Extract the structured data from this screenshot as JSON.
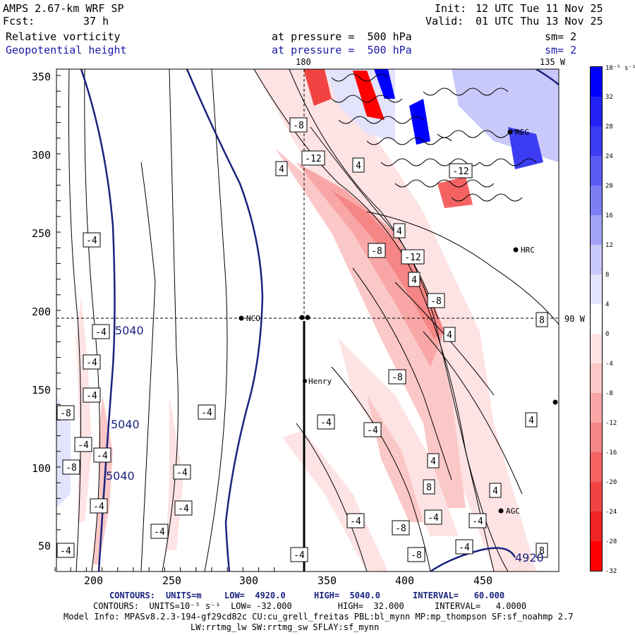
{
  "header": {
    "model": "AMPS 2.67-km WRF SP",
    "fcst_label": "Fcst:",
    "fcst_value": "37 h",
    "init_label": "Init:",
    "init_value": "12 UTC Tue 11 Nov 25",
    "valid_label": "Valid:",
    "valid_value": "01 UTC Thu 13 Nov 25"
  },
  "fields": [
    {
      "name": "Relative vorticity",
      "level": "at pressure =  500 hPa",
      "smooth": "sm= 2"
    },
    {
      "name": "Geopotential height",
      "level": "at pressure =  500 hPa",
      "smooth": "sm= 2"
    }
  ],
  "map": {
    "top_longitudes": [
      "180",
      "135 W"
    ],
    "right_longitude": "90 W",
    "x_ticks": [
      "200",
      "250",
      "300",
      "350",
      "400",
      "450"
    ],
    "y_ticks": [
      "50",
      "100",
      "150",
      "200",
      "250",
      "300",
      "350"
    ],
    "stations": [
      "NCO",
      "Henry",
      "HRC",
      "RSG",
      "AGC"
    ],
    "height_labels": [
      "5040",
      "5040",
      "5040",
      "4920"
    ],
    "vorticity_labels": [
      "-4",
      "-4",
      "-4",
      "-4",
      "-4",
      "-4",
      "-4",
      "-4",
      "-4",
      "-4",
      "-4",
      "-4",
      "-4",
      "-4",
      "-4",
      "-4",
      "-4",
      "-4",
      "-4",
      "-8",
      "-8",
      "-8",
      "-8",
      "-8",
      "-8",
      "-8",
      "-8",
      "-12",
      "-12",
      "-12",
      "4",
      "4",
      "4",
      "4",
      "4",
      "4",
      "4",
      "4",
      "8",
      "8",
      "8"
    ]
  },
  "colorbar": {
    "unit": "10⁻⁵ s⁻¹",
    "levels": [
      "32",
      "28",
      "24",
      "20",
      "16",
      "12",
      "8",
      "4",
      "0",
      "-4",
      "-8",
      "-12",
      "-16",
      "-20",
      "-24",
      "-28",
      "-32"
    ],
    "colors": [
      "#0000ff",
      "#2323f7",
      "#3c3cf3",
      "#5a5af2",
      "#7d7df4",
      "#a3a3f7",
      "#c8c8fa",
      "#e3e3fc",
      "#ffffff",
      "#fde3e3",
      "#fbc8c8",
      "#f8a6a6",
      "#f68585",
      "#f46262",
      "#f24343",
      "#f12424",
      "#ff0000"
    ]
  },
  "footer": {
    "line1_label": "CONTOURS:",
    "line1_units": "UNITS=m",
    "line1_low": "LOW=  4920.0",
    "line1_high": "HIGH=  5040.0",
    "line1_interval": "INTERVAL=   60.000",
    "line2": "CONTOURS:  UNITS=10⁻⁵ s⁻¹  LOW= -32.000         HIGH=  32.000      INTERVAL=   4.0000",
    "line3": "Model Info: MPASv8.2.3-194-gf29cd82c CU:cu_grell_freitas PBL:bl_mynn MP:mp_thompson SF:sf_noahmp 2.7",
    "line4": "LW:rrtmg_lw SW:rrtmg_sw SFLAY:sf_mynn"
  }
}
